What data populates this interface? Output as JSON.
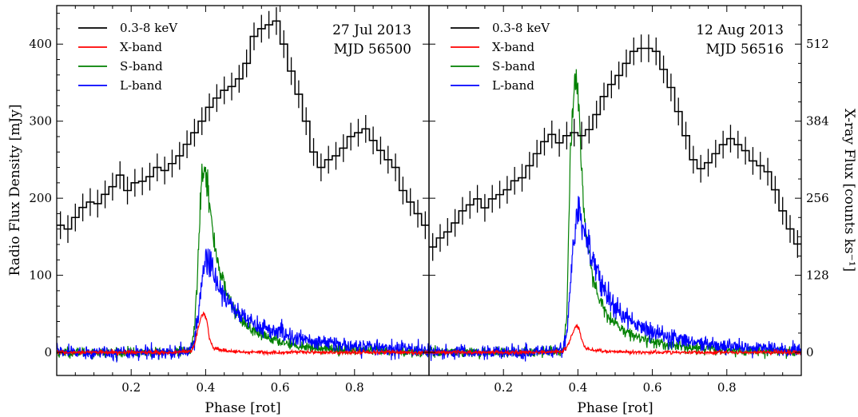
{
  "figure": {
    "ylabel_left": "Radio Flux Density [mJy]",
    "ylabel_right": "X-ray Flux [counts ks⁻¹]"
  },
  "chart_data": [
    {
      "type": "line",
      "panel": "left",
      "annotation": [
        "27 Jul 2013",
        "MJD 56500"
      ],
      "xlabel": "Phase [rot]",
      "ylabel": "Radio Flux Density [mJy]",
      "xlim": [
        0,
        1
      ],
      "ylim": [
        -30,
        450
      ],
      "xticks": [
        "0.2",
        "0.4",
        "0.6",
        "0.8"
      ],
      "yticks": [
        "0",
        "100",
        "200",
        "300",
        "400"
      ],
      "legend_position": "top-left",
      "grid": false,
      "series": [
        {
          "name": "0.3-8 keV",
          "color": "#000000",
          "style": "step-with-errorbars",
          "x": [
            0.0,
            0.02,
            0.04,
            0.06,
            0.08,
            0.1,
            0.12,
            0.14,
            0.16,
            0.18,
            0.2,
            0.22,
            0.24,
            0.26,
            0.28,
            0.3,
            0.32,
            0.34,
            0.36,
            0.38,
            0.4,
            0.42,
            0.44,
            0.46,
            0.48,
            0.5,
            0.52,
            0.54,
            0.56,
            0.58,
            0.6,
            0.62,
            0.64,
            0.66,
            0.68,
            0.7,
            0.72,
            0.74,
            0.76,
            0.78,
            0.8,
            0.82,
            0.84,
            0.86,
            0.88,
            0.9,
            0.92,
            0.94,
            0.96,
            0.98
          ],
          "values": [
            165,
            160,
            175,
            188,
            195,
            193,
            205,
            215,
            230,
            210,
            220,
            222,
            228,
            240,
            236,
            245,
            255,
            270,
            285,
            300,
            318,
            330,
            340,
            345,
            355,
            375,
            410,
            420,
            425,
            430,
            400,
            365,
            335,
            300,
            260,
            240,
            250,
            255,
            265,
            280,
            285,
            290,
            275,
            262,
            250,
            240,
            210,
            195,
            180,
            165
          ],
          "errors": [
            18,
            18,
            18,
            18,
            18,
            18,
            18,
            18,
            18,
            18,
            18,
            18,
            18,
            18,
            18,
            18,
            18,
            18,
            18,
            18,
            18,
            18,
            18,
            18,
            18,
            18,
            18,
            18,
            18,
            18,
            18,
            18,
            18,
            18,
            18,
            18,
            18,
            18,
            18,
            18,
            18,
            18,
            18,
            18,
            18,
            18,
            18,
            18,
            18,
            18
          ]
        },
        {
          "name": "X-band",
          "color": "#ff0000",
          "style": "line",
          "x": [
            0.0,
            0.1,
            0.2,
            0.3,
            0.36,
            0.37,
            0.38,
            0.39,
            0.395,
            0.4,
            0.405,
            0.41,
            0.42,
            0.44,
            0.48,
            0.55,
            0.7,
            0.85,
            1.0
          ],
          "values": [
            0,
            0,
            0,
            0,
            1,
            10,
            32,
            48,
            52,
            46,
            38,
            18,
            6,
            3,
            1,
            0,
            0,
            0,
            0
          ]
        },
        {
          "name": "S-band",
          "color": "#008000",
          "style": "line",
          "x": [
            0.0,
            0.1,
            0.2,
            0.3,
            0.36,
            0.37,
            0.38,
            0.385,
            0.39,
            0.395,
            0.4,
            0.41,
            0.42,
            0.44,
            0.46,
            0.48,
            0.5,
            0.52,
            0.55,
            0.6,
            0.65,
            0.7,
            0.8,
            0.9,
            1.0
          ],
          "values": [
            0,
            0,
            0,
            0,
            2,
            30,
            120,
            190,
            232,
            246,
            240,
            195,
            150,
            102,
            72,
            53,
            40,
            30,
            22,
            14,
            9,
            6,
            3,
            1,
            0
          ]
        },
        {
          "name": "L-band",
          "color": "#0000ff",
          "style": "line",
          "x": [
            0.0,
            0.1,
            0.2,
            0.3,
            0.36,
            0.37,
            0.38,
            0.39,
            0.4,
            0.41,
            0.42,
            0.44,
            0.46,
            0.48,
            0.5,
            0.52,
            0.55,
            0.6,
            0.65,
            0.7,
            0.8,
            0.9,
            1.0
          ],
          "values": [
            0,
            0,
            0,
            0,
            2,
            12,
            48,
            95,
            122,
            118,
            105,
            82,
            66,
            55,
            46,
            40,
            33,
            25,
            18,
            13,
            8,
            5,
            3
          ]
        }
      ]
    },
    {
      "type": "line",
      "panel": "right",
      "annotation": [
        "12 Aug 2013",
        "MJD 56516"
      ],
      "xlabel": "Phase [rot]",
      "ylabel": "X-ray Flux [counts ks⁻¹]",
      "xlim": [
        0,
        1
      ],
      "ylim": [
        -30,
        450
      ],
      "y2lim": [
        -38.4,
        576
      ],
      "xticks": [
        "0.2",
        "0.4",
        "0.6",
        "0.8"
      ],
      "y2ticks": [
        "0",
        "128",
        "256",
        "384",
        "512"
      ],
      "legend_position": "top-left",
      "grid": false,
      "series": [
        {
          "name": "0.3-8 keV",
          "color": "#000000",
          "style": "step-with-errorbars",
          "axis": "right",
          "x": [
            0.0,
            0.02,
            0.04,
            0.06,
            0.08,
            0.1,
            0.12,
            0.14,
            0.16,
            0.18,
            0.2,
            0.22,
            0.24,
            0.26,
            0.28,
            0.3,
            0.32,
            0.34,
            0.36,
            0.38,
            0.4,
            0.42,
            0.44,
            0.46,
            0.48,
            0.5,
            0.52,
            0.54,
            0.56,
            0.58,
            0.6,
            0.62,
            0.64,
            0.66,
            0.68,
            0.7,
            0.72,
            0.74,
            0.76,
            0.78,
            0.8,
            0.82,
            0.84,
            0.86,
            0.88,
            0.9,
            0.92,
            0.94,
            0.96,
            0.98
          ],
          "values": [
            175,
            190,
            200,
            215,
            235,
            245,
            255,
            240,
            255,
            262,
            270,
            285,
            290,
            310,
            330,
            350,
            362,
            348,
            360,
            365,
            360,
            370,
            395,
            425,
            445,
            460,
            480,
            500,
            505,
            505,
            500,
            470,
            440,
            400,
            360,
            320,
            305,
            315,
            330,
            345,
            355,
            345,
            335,
            318,
            310,
            300,
            270,
            235,
            205,
            180
          ],
          "errors": [
            23,
            23,
            23,
            23,
            23,
            23,
            23,
            23,
            23,
            23,
            23,
            23,
            23,
            23,
            23,
            23,
            23,
            23,
            23,
            23,
            23,
            23,
            23,
            23,
            23,
            23,
            23,
            23,
            23,
            23,
            23,
            23,
            23,
            23,
            23,
            23,
            23,
            23,
            23,
            23,
            23,
            23,
            23,
            23,
            23,
            23,
            23,
            23,
            23,
            23
          ]
        },
        {
          "name": "X-band",
          "color": "#ff0000",
          "style": "line",
          "x": [
            0.0,
            0.1,
            0.2,
            0.3,
            0.36,
            0.37,
            0.38,
            0.39,
            0.395,
            0.4,
            0.405,
            0.41,
            0.42,
            0.44,
            0.48,
            0.55,
            0.7,
            0.85,
            1.0
          ],
          "values": [
            0,
            0,
            0,
            0,
            1,
            6,
            18,
            30,
            35,
            34,
            28,
            15,
            6,
            3,
            1,
            0,
            0,
            0,
            0
          ]
        },
        {
          "name": "S-band",
          "color": "#008000",
          "style": "line",
          "x": [
            0.0,
            0.1,
            0.2,
            0.3,
            0.36,
            0.37,
            0.375,
            0.38,
            0.385,
            0.39,
            0.395,
            0.4,
            0.405,
            0.41,
            0.42,
            0.44,
            0.46,
            0.48,
            0.5,
            0.52,
            0.55,
            0.6,
            0.65,
            0.7,
            0.8,
            0.9,
            1.0
          ],
          "values": [
            0,
            0,
            0,
            0,
            3,
            40,
            150,
            260,
            320,
            343,
            348,
            330,
            290,
            240,
            160,
            95,
            65,
            48,
            38,
            30,
            22,
            14,
            9,
            6,
            3,
            1,
            0
          ]
        },
        {
          "name": "L-band",
          "color": "#0000ff",
          "style": "line",
          "x": [
            0.0,
            0.1,
            0.2,
            0.3,
            0.36,
            0.37,
            0.38,
            0.39,
            0.395,
            0.4,
            0.41,
            0.42,
            0.44,
            0.46,
            0.48,
            0.5,
            0.52,
            0.55,
            0.6,
            0.65,
            0.7,
            0.8,
            0.9,
            1.0
          ],
          "values": [
            0,
            0,
            0,
            0,
            3,
            25,
            90,
            150,
            172,
            178,
            170,
            150,
            118,
            92,
            72,
            58,
            48,
            38,
            27,
            19,
            13,
            8,
            5,
            3
          ]
        }
      ]
    }
  ]
}
